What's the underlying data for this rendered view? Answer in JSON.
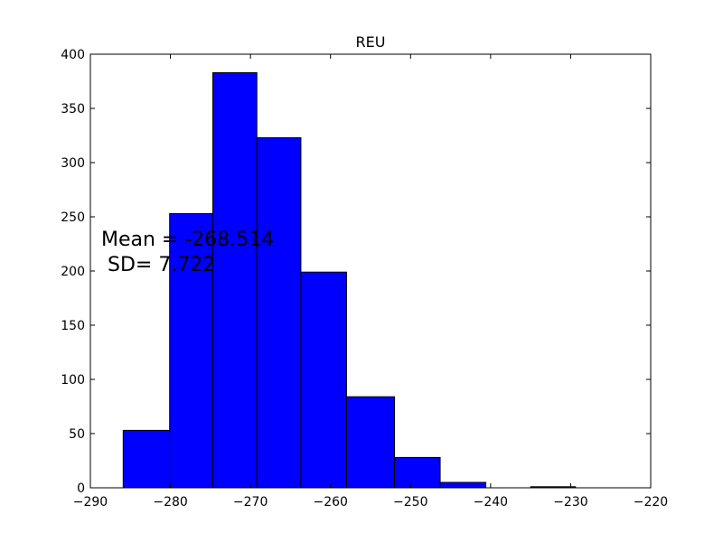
{
  "chart_data": {
    "type": "bar",
    "title": "REU",
    "xlabel": "",
    "ylabel": "",
    "xlim": [
      -290,
      -220
    ],
    "ylim": [
      0,
      400
    ],
    "xticks": [
      -290,
      -280,
      -270,
      -260,
      -250,
      -240,
      -230,
      -220
    ],
    "xtick_labels": [
      "−290",
      "−280",
      "−270",
      "−260",
      "−250",
      "−240",
      "−230",
      "−220"
    ],
    "yticks": [
      0,
      50,
      100,
      150,
      200,
      250,
      300,
      350,
      400
    ],
    "ytick_labels": [
      "0",
      "50",
      "100",
      "150",
      "200",
      "250",
      "300",
      "350",
      "400"
    ],
    "bins": [
      {
        "x0": -285.9,
        "x1": -280.1,
        "count": 53
      },
      {
        "x0": -280.1,
        "x1": -274.7,
        "count": 253
      },
      {
        "x0": -274.7,
        "x1": -269.2,
        "count": 383
      },
      {
        "x0": -269.2,
        "x1": -263.7,
        "count": 323
      },
      {
        "x0": -263.7,
        "x1": -258.0,
        "count": 199
      },
      {
        "x0": -258.0,
        "x1": -252.0,
        "count": 84
      },
      {
        "x0": -252.0,
        "x1": -246.3,
        "count": 28
      },
      {
        "x0": -246.3,
        "x1": -240.6,
        "count": 5
      },
      {
        "x0": -240.6,
        "x1": -235.0,
        "count": 0
      },
      {
        "x0": -235.0,
        "x1": -229.4,
        "count": 1
      }
    ],
    "bar_color": "#0000ff",
    "edge_color": "#000000",
    "grid": false,
    "annotation": {
      "line1": "Mean = -268.514",
      "line2": " SD= 7.722"
    }
  }
}
